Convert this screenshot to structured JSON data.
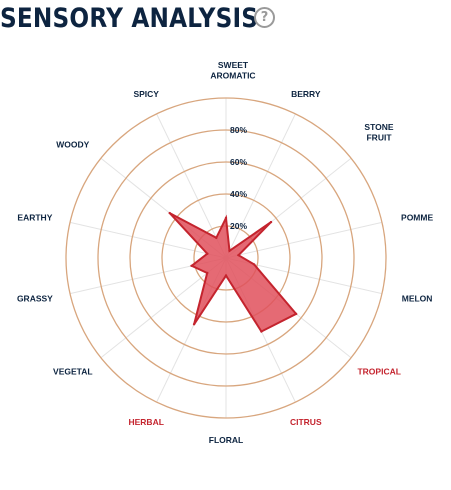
{
  "header": {
    "title": "SENSORY ANALYSIS",
    "help_icon_glyph": "?"
  },
  "colors": {
    "title": "#0d2440",
    "ring": "#d8a67e",
    "spoke": "#e3e3e3",
    "fill": "#e0505c",
    "stroke": "#c4242e",
    "label": "#0d2440",
    "label_highlight": "#c4242e"
  },
  "chart_data": {
    "type": "radar",
    "title": "SENSORY ANALYSIS",
    "rmax": 100,
    "rings": [
      20,
      40,
      60,
      80,
      100
    ],
    "tick_labels": [
      "20%",
      "40%",
      "60%",
      "80%"
    ],
    "axes": [
      {
        "label": "SWEET\nAROMATIC",
        "value": 25,
        "highlight": false
      },
      {
        "label": "BERRY",
        "value": 5,
        "highlight": false
      },
      {
        "label": "STONE\nFRUIT",
        "value": 36,
        "highlight": false
      },
      {
        "label": "POMME",
        "value": 8,
        "highlight": false
      },
      {
        "label": "MELON",
        "value": 18,
        "highlight": false
      },
      {
        "label": "TROPICAL",
        "value": 56,
        "highlight": true
      },
      {
        "label": "CITRUS",
        "value": 51,
        "highlight": true
      },
      {
        "label": "FLORAL",
        "value": 11,
        "highlight": false
      },
      {
        "label": "HERBAL",
        "value": 46,
        "highlight": true
      },
      {
        "label": "VEGETAL",
        "value": 15,
        "highlight": false
      },
      {
        "label": "GRASSY",
        "value": 22,
        "highlight": false
      },
      {
        "label": "EARTHY",
        "value": 12,
        "highlight": false
      },
      {
        "label": "WOODY",
        "value": 45,
        "highlight": false
      },
      {
        "label": "SPICY",
        "value": 14,
        "highlight": false
      }
    ]
  }
}
